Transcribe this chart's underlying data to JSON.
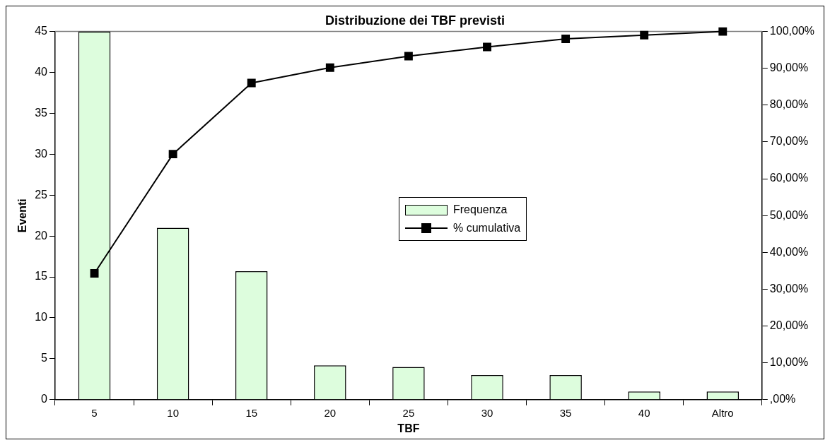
{
  "chart_data": {
    "type": "bar",
    "title": "Distribuzione dei TBF previsti",
    "xlabel": "TBF",
    "ylabel": "Eventi",
    "categories": [
      "5",
      "10",
      "15",
      "20",
      "25",
      "30",
      "35",
      "40",
      "Altro"
    ],
    "series": [
      {
        "name": "Frequenza",
        "color": "#ddfddd",
        "values": [
          45,
          21,
          15.7,
          4.2,
          4,
          3,
          3,
          1,
          1
        ]
      },
      {
        "name": "% cumulativa",
        "type": "line",
        "axis": "y2",
        "color": "#000000",
        "marker": "square",
        "values": [
          34.3,
          66.7,
          86.0,
          90.2,
          93.3,
          95.8,
          98.0,
          99.0,
          100
        ]
      }
    ],
    "ylim": [
      0,
      45
    ],
    "yticks": [
      0,
      5,
      10,
      15,
      20,
      25,
      30,
      35,
      40,
      45
    ],
    "y2lim": [
      0,
      100
    ],
    "y2ticks": [
      {
        "value": 0,
        "label": ",00%"
      },
      {
        "value": 10,
        "label": "10,00%"
      },
      {
        "value": 20,
        "label": "20,00%"
      },
      {
        "value": 30,
        "label": "30,00%"
      },
      {
        "value": 40,
        "label": "40,00%"
      },
      {
        "value": 50,
        "label": "50,00%"
      },
      {
        "value": 60,
        "label": "60,00%"
      },
      {
        "value": 70,
        "label": "70,00%"
      },
      {
        "value": 80,
        "label": "80,00%"
      },
      {
        "value": 90,
        "label": "90,00%"
      },
      {
        "value": 100,
        "label": "100,00%"
      }
    ],
    "grid": false,
    "legend": "center"
  }
}
